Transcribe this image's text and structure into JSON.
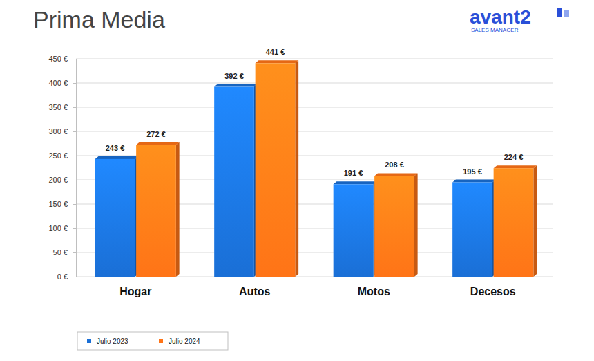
{
  "chart_data": {
    "type": "bar",
    "title": "Prima Media",
    "annotations": [
      "avant2",
      "SALES MANAGER"
    ],
    "categories": [
      "Hogar",
      "Autos",
      "Motos",
      "Decesos"
    ],
    "series": [
      {
        "name": "Julio 2023",
        "color": "#1a6fd6",
        "values": [
          243,
          392,
          191,
          195
        ],
        "value_labels": [
          "243 €",
          "392 €",
          "191 €",
          "195 €"
        ]
      },
      {
        "name": "Julio 2024",
        "color": "#ff7417",
        "values": [
          272,
          441,
          208,
          224
        ],
        "value_labels": [
          "272 €",
          "441 €",
          "208 €",
          "224 €"
        ]
      }
    ],
    "ylim": [
      0,
      450
    ],
    "yticks": [
      {
        "value": 0,
        "label": "0 €"
      },
      {
        "value": 50,
        "label": "50 €"
      },
      {
        "value": 100,
        "label": "100 €"
      },
      {
        "value": 150,
        "label": "150 €"
      },
      {
        "value": 200,
        "label": "200 €"
      },
      {
        "value": 250,
        "label": "250 €"
      },
      {
        "value": 300,
        "label": "300 €"
      },
      {
        "value": 350,
        "label": "350 €"
      },
      {
        "value": 400,
        "label": "400 €"
      },
      {
        "value": 450,
        "label": "450 €"
      }
    ],
    "grid": true,
    "data_labels": true,
    "legend": "bottom-left"
  }
}
